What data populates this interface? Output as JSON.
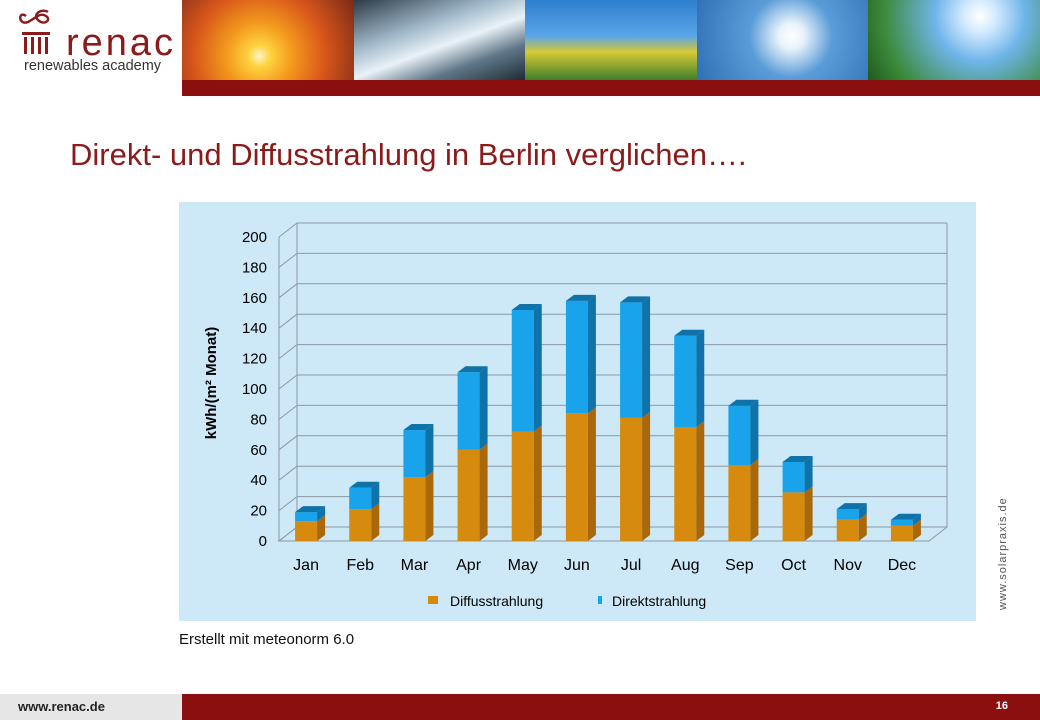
{
  "header": {
    "logo_text": "renac",
    "logo_subtitle": "renewables academy"
  },
  "slide": {
    "title": "Direkt- und Diffusstrahlung in Berlin verglichen….",
    "caption": "Erstellt mit meteonorm 6.0",
    "side_url": "www.solarpraxis.de",
    "footer_url": "www.renac.de",
    "page_number": "16"
  },
  "colors": {
    "diffus": "#d68a0e",
    "diffus_side": "#a9680a",
    "direkt": "#18a3ea",
    "direkt_side": "#0f72a8",
    "brand_red": "#8b0f0f"
  },
  "chart_data": {
    "type": "bar",
    "stacked": true,
    "ylabel": "kWh/(m² Monat)",
    "ylim": [
      0,
      200
    ],
    "yticks": [
      "0",
      "20",
      "40",
      "60",
      "80",
      "100",
      "120",
      "140",
      "160",
      "180",
      "200"
    ],
    "categories": [
      "Jan",
      "Feb",
      "Mar",
      "Apr",
      "May",
      "Jun",
      "Jul",
      "Aug",
      "Sep",
      "Oct",
      "Nov",
      "Dec"
    ],
    "series": [
      {
        "name": "Diffusstrahlung",
        "values": [
          13,
          21,
          42,
          60,
          72,
          84,
          81,
          75,
          50,
          32,
          14,
          10
        ]
      },
      {
        "name": "Direktstrahlung",
        "values": [
          6,
          14,
          31,
          51,
          80,
          74,
          76,
          60,
          39,
          20,
          7,
          4
        ]
      }
    ],
    "legend_position": "bottom",
    "grid": true
  }
}
